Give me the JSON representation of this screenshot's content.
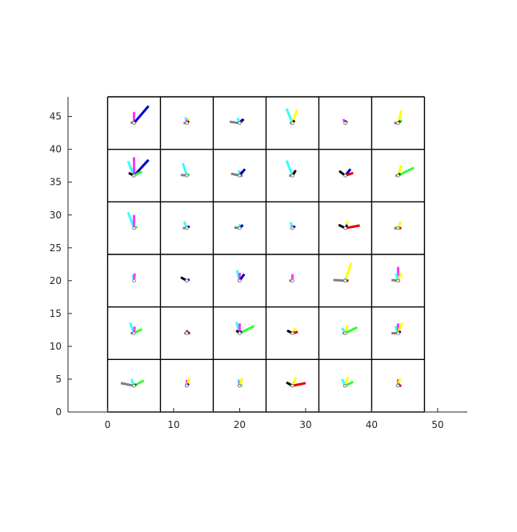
{
  "chart_data": {
    "type": "scatter",
    "title": "",
    "xlabel": "",
    "ylabel": "",
    "xlim": [
      -6,
      54.5
    ],
    "ylim": [
      0,
      48
    ],
    "x_ticks": [
      "0",
      "10",
      "20",
      "30",
      "40",
      "50"
    ],
    "x_tick_values": [
      0,
      10,
      20,
      30,
      40,
      50
    ],
    "y_ticks": [
      "0",
      "5",
      "10",
      "15",
      "20",
      "25",
      "30",
      "35",
      "40",
      "45"
    ],
    "y_tick_values": [
      0,
      5,
      10,
      15,
      20,
      25,
      30,
      35,
      40,
      45
    ],
    "grid": false,
    "grid_cells": {
      "x_edges": [
        0,
        8,
        16,
        24,
        32,
        40,
        48
      ],
      "y_edges": [
        0,
        8,
        16,
        24,
        32,
        40,
        48
      ]
    },
    "colors": {
      "gray": "#808080",
      "magenta": "#ff33ff",
      "cyan": "#33ffff",
      "yellow": "#ffff00",
      "blue": "#0000cc",
      "green": "#33ff33",
      "red": "#e60000",
      "black": "#000000"
    },
    "glyphs": [
      {
        "cx": 4,
        "cy": 44,
        "rays": [
          {
            "c": "gray",
            "dx": -0.5,
            "dy": 0.1
          },
          {
            "c": "magenta",
            "dx": 0,
            "dy": 1.7
          },
          {
            "c": "blue",
            "dx": 2.2,
            "dy": 2.6
          },
          {
            "c": "green",
            "dx": 0.3,
            "dy": 0.1
          },
          {
            "c": "black",
            "dx": 0.25,
            "dy": 0.3
          }
        ]
      },
      {
        "cx": 12,
        "cy": 44,
        "rays": [
          {
            "c": "gray",
            "dx": -0.5,
            "dy": 0
          },
          {
            "c": "cyan",
            "dx": -0.2,
            "dy": 0.9
          },
          {
            "c": "yellow",
            "dx": 0.3,
            "dy": 0.7
          },
          {
            "c": "black",
            "dx": 0.3,
            "dy": 0.3
          },
          {
            "c": "magenta",
            "dx": 0,
            "dy": 0.5
          }
        ]
      },
      {
        "cx": 20,
        "cy": 44,
        "rays": [
          {
            "c": "gray",
            "dx": -1.5,
            "dy": 0.2
          },
          {
            "c": "cyan",
            "dx": -0.3,
            "dy": 0.8
          },
          {
            "c": "black",
            "dx": 0.6,
            "dy": 0.6
          },
          {
            "c": "blue",
            "dx": 0.4,
            "dy": 0.5
          }
        ]
      },
      {
        "cx": 28,
        "cy": 44,
        "rays": [
          {
            "c": "cyan",
            "dx": -0.9,
            "dy": 2.2
          },
          {
            "c": "yellow",
            "dx": 0.7,
            "dy": 2.0
          },
          {
            "c": "gray",
            "dx": -0.4,
            "dy": 0
          },
          {
            "c": "black",
            "dx": 0.3,
            "dy": 0.4
          }
        ]
      },
      {
        "cx": 36,
        "cy": 44,
        "rays": [
          {
            "c": "magenta",
            "dx": -0.3,
            "dy": 0.6
          },
          {
            "c": "green",
            "dx": 0.4,
            "dy": 0.2
          },
          {
            "c": "blue",
            "dx": 0.1,
            "dy": 0.4
          },
          {
            "c": "gray",
            "dx": -0.2,
            "dy": 0
          }
        ]
      },
      {
        "cx": 44,
        "cy": 44,
        "rays": [
          {
            "c": "gray",
            "dx": -0.6,
            "dy": 0
          },
          {
            "c": "yellow",
            "dx": 0.5,
            "dy": 1.9
          },
          {
            "c": "green",
            "dx": 0.6,
            "dy": 0.4
          },
          {
            "c": "black",
            "dx": 0.3,
            "dy": 0.3
          }
        ]
      },
      {
        "cx": 4,
        "cy": 36,
        "rays": [
          {
            "c": "cyan",
            "dx": -0.9,
            "dy": 2.2
          },
          {
            "c": "magenta",
            "dx": 0,
            "dy": 2.8
          },
          {
            "c": "blue",
            "dx": 2.2,
            "dy": 2.4
          },
          {
            "c": "green",
            "dx": 1.2,
            "dy": 0.6
          },
          {
            "c": "black",
            "dx": -0.8,
            "dy": 0.4
          },
          {
            "c": "gray",
            "dx": -0.3,
            "dy": 0
          }
        ]
      },
      {
        "cx": 12,
        "cy": 36,
        "rays": [
          {
            "c": "cyan",
            "dx": -0.6,
            "dy": 1.9
          },
          {
            "c": "gray",
            "dx": -0.9,
            "dy": 0.1
          },
          {
            "c": "green",
            "dx": 0.4,
            "dy": 0.2
          }
        ]
      },
      {
        "cx": 20,
        "cy": 36,
        "rays": [
          {
            "c": "gray",
            "dx": -1.3,
            "dy": 0.3
          },
          {
            "c": "cyan",
            "dx": -0.1,
            "dy": 0.8
          },
          {
            "c": "black",
            "dx": 0.4,
            "dy": 0.6
          },
          {
            "c": "blue",
            "dx": 0.8,
            "dy": 1.0
          },
          {
            "c": "red",
            "dx": 0.4,
            "dy": 0
          }
        ]
      },
      {
        "cx": 28,
        "cy": 36,
        "rays": [
          {
            "c": "cyan",
            "dx": -0.9,
            "dy": 2.3
          },
          {
            "c": "gray",
            "dx": -0.5,
            "dy": 0
          },
          {
            "c": "black",
            "dx": 0.5,
            "dy": 0.8
          }
        ]
      },
      {
        "cx": 36,
        "cy": 36,
        "rays": [
          {
            "c": "black",
            "dx": -0.9,
            "dy": 0.7
          },
          {
            "c": "blue",
            "dx": 0.8,
            "dy": 1.0
          },
          {
            "c": "red",
            "dx": 1.2,
            "dy": 0.4
          },
          {
            "c": "gray",
            "dx": -0.2,
            "dy": 0
          }
        ]
      },
      {
        "cx": 44,
        "cy": 36,
        "rays": [
          {
            "c": "yellow",
            "dx": 0.5,
            "dy": 1.6
          },
          {
            "c": "green",
            "dx": 2.4,
            "dy": 1.2
          },
          {
            "c": "gray",
            "dx": -0.4,
            "dy": 0
          },
          {
            "c": "black",
            "dx": 0.3,
            "dy": 0.3
          }
        ]
      },
      {
        "cx": 4,
        "cy": 28,
        "rays": [
          {
            "c": "cyan",
            "dx": -0.9,
            "dy": 2.4
          },
          {
            "c": "magenta",
            "dx": 0,
            "dy": 2.0
          },
          {
            "c": "green",
            "dx": 0.5,
            "dy": 0.2
          },
          {
            "c": "gray",
            "dx": -0.2,
            "dy": 0
          }
        ]
      },
      {
        "cx": 12,
        "cy": 28,
        "rays": [
          {
            "c": "cyan",
            "dx": -0.4,
            "dy": 1.0
          },
          {
            "c": "gray",
            "dx": -0.6,
            "dy": 0
          },
          {
            "c": "blue",
            "dx": 0.4,
            "dy": 0.3
          }
        ]
      },
      {
        "cx": 20,
        "cy": 28,
        "rays": [
          {
            "c": "gray",
            "dx": -0.8,
            "dy": 0.1
          },
          {
            "c": "cyan",
            "dx": 0,
            "dy": 0.6
          },
          {
            "c": "blue",
            "dx": 0.5,
            "dy": 0.5
          }
        ]
      },
      {
        "cx": 28,
        "cy": 28,
        "rays": [
          {
            "c": "cyan",
            "dx": -0.3,
            "dy": 0.9
          },
          {
            "c": "magenta",
            "dx": 0.2,
            "dy": 0.4
          },
          {
            "c": "blue",
            "dx": 0.4,
            "dy": 0.3
          },
          {
            "c": "gray",
            "dx": -0.3,
            "dy": 0
          }
        ]
      },
      {
        "cx": 36,
        "cy": 28,
        "rays": [
          {
            "c": "black",
            "dx": -1.0,
            "dy": 0.5
          },
          {
            "c": "yellow",
            "dx": 0.4,
            "dy": 1.1
          },
          {
            "c": "red",
            "dx": 2.2,
            "dy": 0.4
          },
          {
            "c": "blue",
            "dx": 0.3,
            "dy": 0.5
          }
        ]
      },
      {
        "cx": 44,
        "cy": 28,
        "rays": [
          {
            "c": "yellow",
            "dx": 0.4,
            "dy": 1.0
          },
          {
            "c": "gray",
            "dx": -0.6,
            "dy": 0
          },
          {
            "c": "red",
            "dx": 0.5,
            "dy": 0
          }
        ]
      },
      {
        "cx": 4,
        "cy": 20,
        "rays": [
          {
            "c": "cyan",
            "dx": -0.2,
            "dy": 0.9
          },
          {
            "c": "magenta",
            "dx": 0.1,
            "dy": 1.1
          },
          {
            "c": "gray",
            "dx": -0.2,
            "dy": 0
          }
        ]
      },
      {
        "cx": 12,
        "cy": 20,
        "rays": [
          {
            "c": "black",
            "dx": -0.9,
            "dy": 0.5
          },
          {
            "c": "blue",
            "dx": 0.4,
            "dy": 0.2
          },
          {
            "c": "gray",
            "dx": -0.3,
            "dy": 0
          }
        ]
      },
      {
        "cx": 20,
        "cy": 20,
        "rays": [
          {
            "c": "cyan",
            "dx": -0.4,
            "dy": 1.6
          },
          {
            "c": "magenta",
            "dx": 0,
            "dy": 1.2
          },
          {
            "c": "blue",
            "dx": 0.7,
            "dy": 1.0
          },
          {
            "c": "gray",
            "dx": -0.3,
            "dy": 0
          }
        ]
      },
      {
        "cx": 28,
        "cy": 20,
        "rays": [
          {
            "c": "gray",
            "dx": -0.5,
            "dy": 0
          },
          {
            "c": "magenta",
            "dx": 0,
            "dy": 1.0
          }
        ]
      },
      {
        "cx": 36,
        "cy": 20,
        "rays": [
          {
            "c": "gray",
            "dx": -1.8,
            "dy": 0.1
          },
          {
            "c": "yellow",
            "dx": 0.9,
            "dy": 2.7
          },
          {
            "c": "red",
            "dx": 0.5,
            "dy": 0
          },
          {
            "c": "cyan",
            "dx": 0,
            "dy": 0.4
          }
        ]
      },
      {
        "cx": 44,
        "cy": 20,
        "rays": [
          {
            "c": "gray",
            "dx": -1.0,
            "dy": 0.1
          },
          {
            "c": "magenta",
            "dx": 0,
            "dy": 2.1
          },
          {
            "c": "cyan",
            "dx": -0.3,
            "dy": 1.1
          },
          {
            "c": "yellow",
            "dx": 0.5,
            "dy": 1.1
          },
          {
            "c": "red",
            "dx": 0.3,
            "dy": 0
          }
        ]
      },
      {
        "cx": 4,
        "cy": 12,
        "rays": [
          {
            "c": "cyan",
            "dx": -0.6,
            "dy": 1.6
          },
          {
            "c": "magenta",
            "dx": 0.1,
            "dy": 1.0
          },
          {
            "c": "gray",
            "dx": -0.5,
            "dy": 0
          },
          {
            "c": "green",
            "dx": 1.2,
            "dy": 0.6
          }
        ]
      },
      {
        "cx": 12,
        "cy": 12,
        "rays": [
          {
            "c": "magenta",
            "dx": 0,
            "dy": 0.5
          },
          {
            "c": "red",
            "dx": 0.5,
            "dy": 0
          },
          {
            "c": "gray",
            "dx": -0.4,
            "dy": 0
          },
          {
            "c": "black",
            "dx": 0.2,
            "dy": 0.3
          }
        ]
      },
      {
        "cx": 20,
        "cy": 12,
        "rays": [
          {
            "c": "cyan",
            "dx": -0.5,
            "dy": 1.7
          },
          {
            "c": "magenta",
            "dx": 0,
            "dy": 1.5
          },
          {
            "c": "green",
            "dx": 2.2,
            "dy": 1.1
          },
          {
            "c": "black",
            "dx": -0.5,
            "dy": 0.4
          },
          {
            "c": "blue",
            "dx": 0.3,
            "dy": 0.3
          }
        ]
      },
      {
        "cx": 28,
        "cy": 12,
        "rays": [
          {
            "c": "black",
            "dx": -0.8,
            "dy": 0.4
          },
          {
            "c": "yellow",
            "dx": 0.4,
            "dy": 0.8
          },
          {
            "c": "red",
            "dx": 0.8,
            "dy": 0.2
          },
          {
            "c": "gray",
            "dx": -0.2,
            "dy": 0
          }
        ]
      },
      {
        "cx": 36,
        "cy": 12,
        "rays": [
          {
            "c": "cyan",
            "dx": -0.5,
            "dy": 0.8
          },
          {
            "c": "yellow",
            "dx": 0.3,
            "dy": 1.2
          },
          {
            "c": "green",
            "dx": 1.8,
            "dy": 0.9
          },
          {
            "c": "gray",
            "dx": -0.4,
            "dy": 0
          }
        ]
      },
      {
        "cx": 44,
        "cy": 12,
        "rays": [
          {
            "c": "gray",
            "dx": -1.0,
            "dy": 0
          },
          {
            "c": "cyan",
            "dx": -0.4,
            "dy": 1.1
          },
          {
            "c": "magenta",
            "dx": 0,
            "dy": 1.5
          },
          {
            "c": "yellow",
            "dx": 0.6,
            "dy": 1.6
          },
          {
            "c": "blue",
            "dx": 0.4,
            "dy": 0.3
          }
        ]
      },
      {
        "cx": 4,
        "cy": 4,
        "rays": [
          {
            "c": "gray",
            "dx": -2.0,
            "dy": 0.4
          },
          {
            "c": "cyan",
            "dx": -0.4,
            "dy": 1.0
          },
          {
            "c": "green",
            "dx": 1.5,
            "dy": 0.8
          },
          {
            "c": "black",
            "dx": 0.3,
            "dy": 0.2
          }
        ]
      },
      {
        "cx": 12,
        "cy": 4,
        "rays": [
          {
            "c": "magenta",
            "dx": 0,
            "dy": 0.9
          },
          {
            "c": "yellow",
            "dx": 0.4,
            "dy": 1.1
          },
          {
            "c": "blue",
            "dx": 0.3,
            "dy": 0.3
          },
          {
            "c": "gray",
            "dx": -0.3,
            "dy": 0
          }
        ]
      },
      {
        "cx": 20,
        "cy": 4,
        "rays": [
          {
            "c": "cyan",
            "dx": -0.2,
            "dy": 1.0
          },
          {
            "c": "magenta",
            "dx": 0,
            "dy": 0.7
          },
          {
            "c": "yellow",
            "dx": 0.4,
            "dy": 1.2
          },
          {
            "c": "green",
            "dx": 0.4,
            "dy": 0.1
          },
          {
            "c": "gray",
            "dx": -0.3,
            "dy": 0
          }
        ]
      },
      {
        "cx": 28,
        "cy": 4,
        "rays": [
          {
            "c": "black",
            "dx": -0.9,
            "dy": 0.5
          },
          {
            "c": "yellow",
            "dx": 0.5,
            "dy": 1.2
          },
          {
            "c": "red",
            "dx": 2.0,
            "dy": 0.4
          },
          {
            "c": "gray",
            "dx": -0.3,
            "dy": 0
          }
        ]
      },
      {
        "cx": 36,
        "cy": 4,
        "rays": [
          {
            "c": "cyan",
            "dx": -0.5,
            "dy": 1.0
          },
          {
            "c": "yellow",
            "dx": 0.4,
            "dy": 1.3
          },
          {
            "c": "green",
            "dx": 1.2,
            "dy": 0.6
          },
          {
            "c": "gray",
            "dx": -0.3,
            "dy": 0
          }
        ]
      },
      {
        "cx": 44,
        "cy": 4,
        "rays": [
          {
            "c": "magenta",
            "dx": 0,
            "dy": 1.0
          },
          {
            "c": "yellow",
            "dx": 0.3,
            "dy": 1.1
          },
          {
            "c": "red",
            "dx": 0.5,
            "dy": 0
          },
          {
            "c": "blue",
            "dx": 0.2,
            "dy": 0.3
          },
          {
            "c": "gray",
            "dx": -0.3,
            "dy": 0
          }
        ]
      }
    ]
  }
}
